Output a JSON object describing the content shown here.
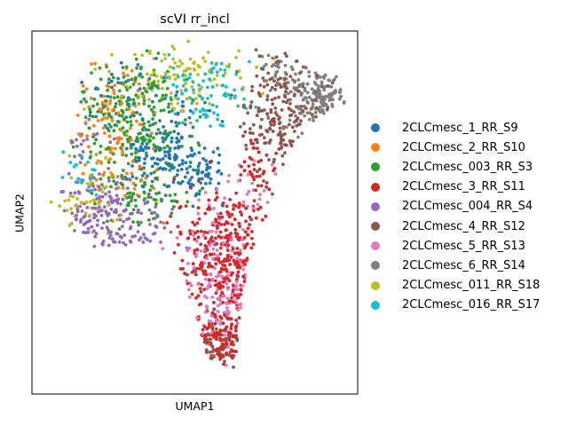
{
  "chart_data": {
    "type": "scatter",
    "title": "scVI rr_incl",
    "xlabel": "UMAP1",
    "ylabel": "UMAP2",
    "grid": false,
    "legend_position": "right",
    "xlim": [
      0,
      10
    ],
    "ylim": [
      0,
      10
    ],
    "series": [
      {
        "name": "2CLCmesc_1_RR_S9",
        "color": "#1f77b4",
        "regions": [
          {
            "cx": 4.0,
            "cy": 6.7,
            "sx": 1.0,
            "sy": 0.8,
            "n": 140
          },
          {
            "cx": 5.2,
            "cy": 6.1,
            "sx": 0.5,
            "sy": 0.5,
            "n": 60
          },
          {
            "cx": 3.0,
            "cy": 8.4,
            "sx": 1.1,
            "sy": 0.7,
            "n": 40
          }
        ]
      },
      {
        "name": "2CLCmesc_2_RR_S10",
        "color": "#ff7f0e",
        "regions": [
          {
            "cx": 2.5,
            "cy": 7.6,
            "sx": 1.0,
            "sy": 1.0,
            "n": 95
          },
          {
            "cx": 3.0,
            "cy": 5.8,
            "sx": 0.8,
            "sy": 0.8,
            "n": 30
          }
        ]
      },
      {
        "name": "2CLCmesc_003_RR_S3",
        "color": "#2ca02c",
        "regions": [
          {
            "cx": 3.1,
            "cy": 7.6,
            "sx": 1.2,
            "sy": 1.2,
            "n": 240
          },
          {
            "cx": 3.4,
            "cy": 5.6,
            "sx": 0.9,
            "sy": 0.6,
            "n": 70
          }
        ]
      },
      {
        "name": "2CLCmesc_3_RR_S11",
        "color": "#d62728",
        "regions": [
          {
            "cx": 6.0,
            "cy": 3.9,
            "sx": 1.1,
            "sy": 1.1,
            "n": 300
          },
          {
            "cx": 6.1,
            "cy": 1.6,
            "sx": 0.9,
            "sy": 0.7,
            "n": 120
          },
          {
            "cx": 7.0,
            "cy": 6.4,
            "sx": 0.6,
            "sy": 0.8,
            "n": 40
          }
        ]
      },
      {
        "name": "2CLCmesc_004_RR_S4",
        "color": "#9467bd",
        "regions": [
          {
            "cx": 2.2,
            "cy": 4.9,
            "sx": 0.9,
            "sy": 0.7,
            "n": 130
          },
          {
            "cx": 3.5,
            "cy": 4.5,
            "sx": 0.6,
            "sy": 0.5,
            "n": 40
          },
          {
            "cx": 1.7,
            "cy": 6.6,
            "sx": 0.5,
            "sy": 0.9,
            "n": 30
          }
        ]
      },
      {
        "name": "2CLCmesc_4_RR_S12",
        "color": "#8c564b",
        "regions": [
          {
            "cx": 7.7,
            "cy": 7.7,
            "sx": 0.8,
            "sy": 1.0,
            "n": 190
          },
          {
            "cx": 5.8,
            "cy": 1.2,
            "sx": 0.7,
            "sy": 0.5,
            "n": 45
          }
        ]
      },
      {
        "name": "2CLCmesc_5_RR_S13",
        "color": "#e377c2",
        "regions": [
          {
            "cx": 5.7,
            "cy": 3.0,
            "sx": 0.8,
            "sy": 1.4,
            "n": 170
          },
          {
            "cx": 6.7,
            "cy": 5.9,
            "sx": 0.5,
            "sy": 0.6,
            "n": 20
          }
        ]
      },
      {
        "name": "2CLCmesc_6_RR_S14",
        "color": "#7f7f7f",
        "regions": [
          {
            "cx": 8.9,
            "cy": 8.1,
            "sx": 0.8,
            "sy": 0.6,
            "n": 150
          },
          {
            "cx": 7.7,
            "cy": 8.9,
            "sx": 0.5,
            "sy": 0.5,
            "n": 30
          }
        ]
      },
      {
        "name": "2CLCmesc_011_RR_S18",
        "color": "#bcbd22",
        "regions": [
          {
            "cx": 4.5,
            "cy": 8.7,
            "sx": 1.3,
            "sy": 0.6,
            "n": 110
          },
          {
            "cx": 1.5,
            "cy": 5.5,
            "sx": 0.7,
            "sy": 0.8,
            "n": 50
          }
        ]
      },
      {
        "name": "2CLCmesc_016_RR_S17",
        "color": "#17becf",
        "regions": [
          {
            "cx": 5.3,
            "cy": 8.3,
            "sx": 0.9,
            "sy": 0.7,
            "n": 90
          },
          {
            "cx": 1.6,
            "cy": 5.9,
            "sx": 0.4,
            "sy": 0.5,
            "n": 20
          }
        ]
      }
    ]
  }
}
